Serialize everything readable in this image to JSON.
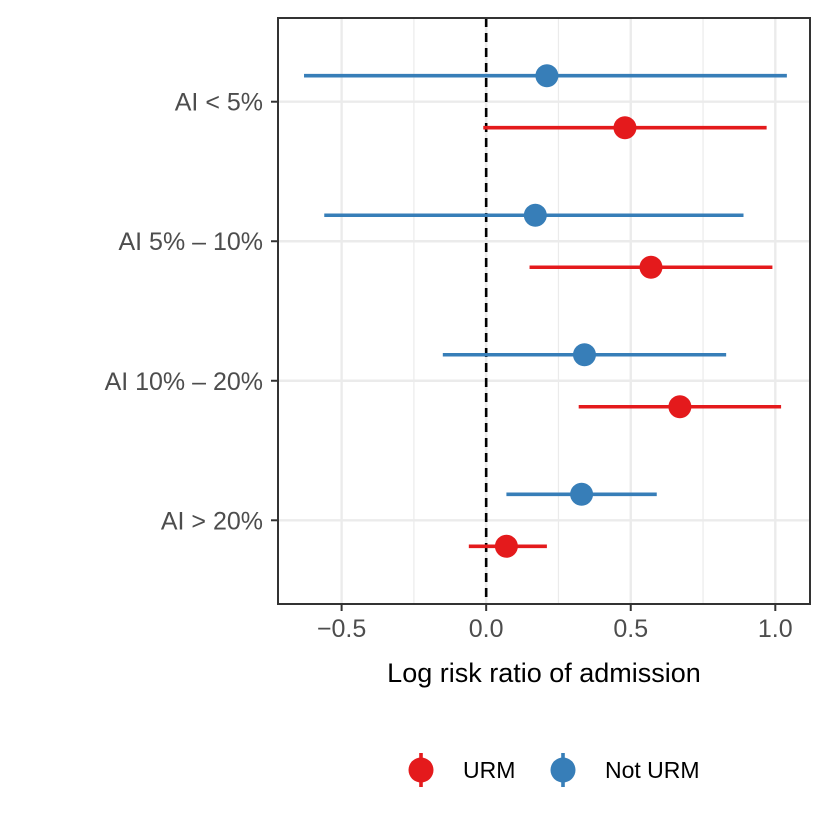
{
  "chart_data": {
    "type": "forest",
    "title": "",
    "xlabel": "Log risk ratio of admission",
    "ylabel": "",
    "xlim": [
      -0.72,
      1.12
    ],
    "x_ticks": [
      -0.5,
      0.0,
      0.5,
      1.0
    ],
    "x_tick_labels": [
      "−0.5",
      "0.0",
      "0.5",
      "1.0"
    ],
    "reference_line_x": 0,
    "grid": true,
    "legend_position": "bottom",
    "categories": [
      "AI < 5%",
      "AI 5% – 10%",
      "AI 10% – 20%",
      "AI > 20%"
    ],
    "series": [
      {
        "name": "Not URM",
        "color": "#377EB8",
        "estimates": [
          0.21,
          0.17,
          0.34,
          0.33
        ],
        "lower": [
          -0.63,
          -0.56,
          -0.15,
          0.07
        ],
        "upper": [
          1.04,
          0.89,
          0.83,
          0.59
        ]
      },
      {
        "name": "URM",
        "color": "#E41A1C",
        "estimates": [
          0.48,
          0.57,
          0.67,
          0.07
        ],
        "lower": [
          -0.01,
          0.15,
          0.32,
          -0.06
        ],
        "upper": [
          0.97,
          0.99,
          1.02,
          0.21
        ]
      }
    ],
    "legend_order": [
      "URM",
      "Not URM"
    ]
  }
}
